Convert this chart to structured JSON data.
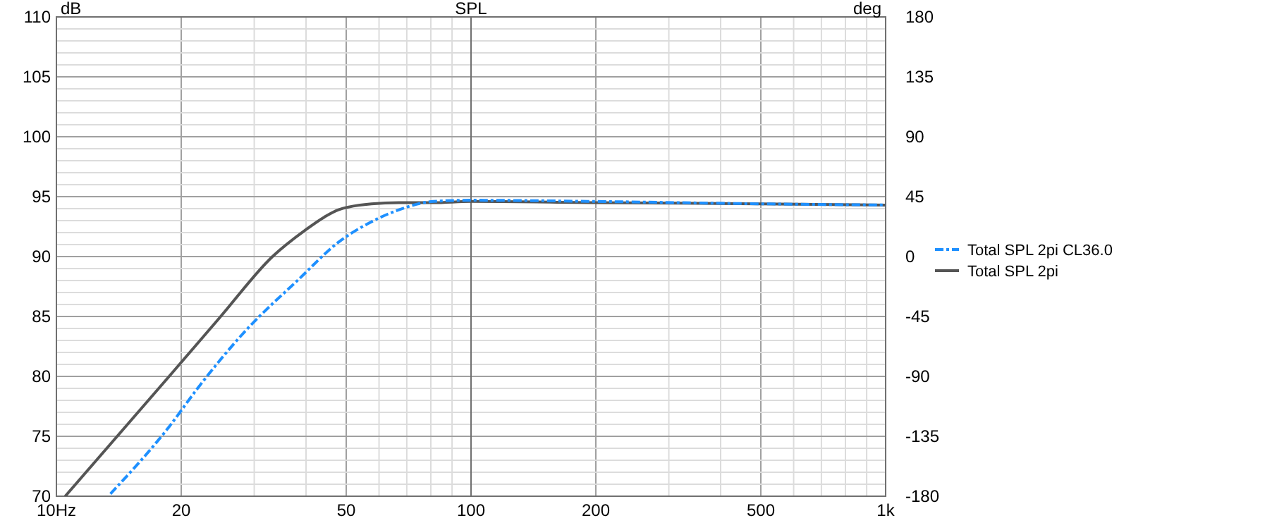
{
  "chart_data": {
    "type": "line",
    "title": "SPL",
    "ylabel": "dB",
    "y2label": "deg",
    "log": "x",
    "grid": true,
    "legend": "right",
    "ref_lines": [
      {
        "axis": "x",
        "value": 100,
        "color": "#707070"
      }
    ],
    "x": [
      10.5,
      18.7,
      24.9,
      33.2,
      39.8,
      44.3,
      47.9,
      57.5,
      67,
      81,
      100,
      200,
      500,
      1000
    ],
    "series": [
      {
        "name": "Total SPL 2pi CL36.0",
        "color": "#1e90ff",
        "line_style": "dashdot",
        "x": [
          13.5,
          18.7,
          21.9,
          28.4,
          38.4,
          47.9,
          57.5,
          67,
          81,
          100,
          200,
          500,
          1000
        ],
        "values": [
          70.2,
          75.8,
          79.0,
          83.7,
          88.1,
          91.2,
          92.9,
          93.9,
          94.6,
          94.7,
          94.6,
          94.4,
          94.3
        ]
      },
      {
        "name": "Total SPL 2pi",
        "color": "#555555",
        "line_style": "solid",
        "values": [
          70,
          80,
          85,
          90,
          92.2,
          93.3,
          93.9,
          94.4,
          94.5,
          94.5,
          94.6,
          94.5,
          94.4,
          94.3
        ]
      }
    ],
    "xlim": [
      10,
      1000
    ],
    "xticks": [
      {
        "value": 10,
        "label": "10Hz"
      },
      20,
      {
        "value": 30,
        "label": null
      },
      {
        "value": 40,
        "label": null
      },
      50,
      {
        "value": 60,
        "label": null
      },
      {
        "value": 70,
        "label": null
      },
      {
        "value": 80,
        "label": null
      },
      {
        "value": 90,
        "label": null
      },
      100,
      200,
      {
        "value": 300,
        "label": null
      },
      {
        "value": 400,
        "label": null
      },
      500,
      {
        "value": 600,
        "label": null
      },
      {
        "value": 700,
        "label": null
      },
      {
        "value": 800,
        "label": null
      },
      {
        "value": 900,
        "label": null
      },
      {
        "value": 1000,
        "label": "1k"
      }
    ],
    "ylim": [
      70,
      110
    ],
    "yticks": [
      70,
      {
        "value": 71,
        "label": null
      },
      {
        "value": 72,
        "label": null
      },
      {
        "value": 73,
        "label": null
      },
      {
        "value": 74,
        "label": null
      },
      75,
      {
        "value": 76,
        "label": null
      },
      {
        "value": 77,
        "label": null
      },
      {
        "value": 78,
        "label": null
      },
      {
        "value": 79,
        "label": null
      },
      80,
      {
        "value": 81,
        "label": null
      },
      {
        "value": 82,
        "label": null
      },
      {
        "value": 83,
        "label": null
      },
      {
        "value": 84,
        "label": null
      },
      85,
      {
        "value": 86,
        "label": null
      },
      {
        "value": 87,
        "label": null
      },
      {
        "value": 88,
        "label": null
      },
      {
        "value": 89,
        "label": null
      },
      90,
      {
        "value": 91,
        "label": null
      },
      {
        "value": 92,
        "label": null
      },
      {
        "value": 93,
        "label": null
      },
      {
        "value": 94,
        "label": null
      },
      95,
      {
        "value": 96,
        "label": null
      },
      {
        "value": 97,
        "label": null
      },
      {
        "value": 98,
        "label": null
      },
      {
        "value": 99,
        "label": null
      },
      100,
      {
        "value": 101,
        "label": null
      },
      {
        "value": 102,
        "label": null
      },
      {
        "value": 103,
        "label": null
      },
      {
        "value": 104,
        "label": null
      },
      105,
      {
        "value": 106,
        "label": null
      },
      {
        "value": 107,
        "label": null
      },
      {
        "value": 108,
        "label": null
      },
      {
        "value": 109,
        "label": null
      },
      110
    ],
    "y2lim": [
      -180,
      180
    ],
    "y2ticks": [
      -180,
      -135,
      -90,
      -45,
      0,
      45,
      90,
      135,
      180
    ]
  }
}
